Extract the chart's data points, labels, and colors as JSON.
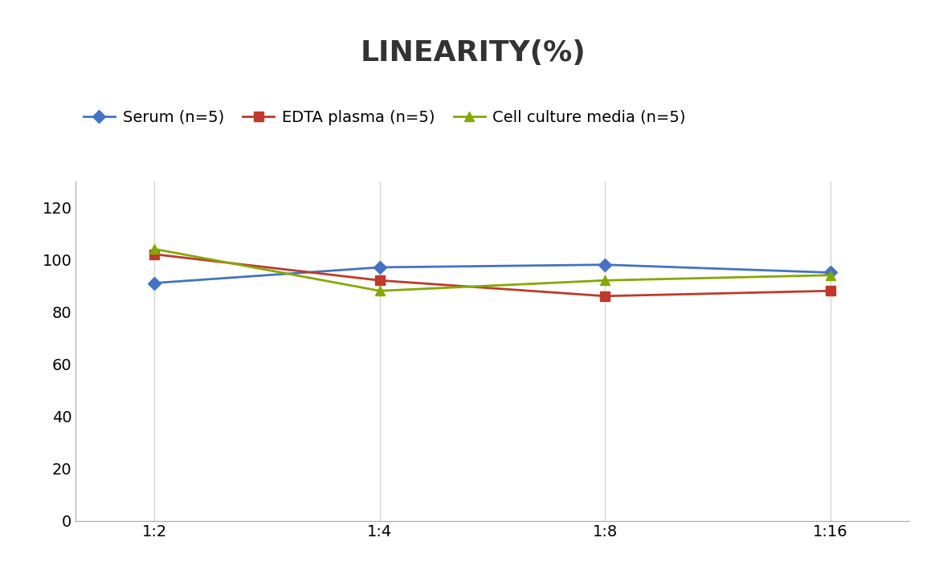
{
  "title": "LINEARITY(%)",
  "x_labels": [
    "1:2",
    "1:4",
    "1:8",
    "1:16"
  ],
  "series": [
    {
      "label": "Serum (n=5)",
      "values": [
        91,
        97,
        98,
        95
      ],
      "color": "#4472C4",
      "marker": "D",
      "marker_size": 8
    },
    {
      "label": "EDTA plasma (n=5)",
      "values": [
        102,
        92,
        86,
        88
      ],
      "color": "#C0392B",
      "marker": "s",
      "marker_size": 8
    },
    {
      "label": "Cell culture media (n=5)",
      "values": [
        104,
        88,
        92,
        94
      ],
      "color": "#84a800",
      "marker": "^",
      "marker_size": 9
    }
  ],
  "ylim": [
    0,
    130
  ],
  "yticks": [
    0,
    20,
    40,
    60,
    80,
    100,
    120
  ],
  "title_fontsize": 26,
  "legend_fontsize": 14,
  "tick_fontsize": 14,
  "background_color": "#ffffff",
  "grid_color": "#d5d5d5"
}
